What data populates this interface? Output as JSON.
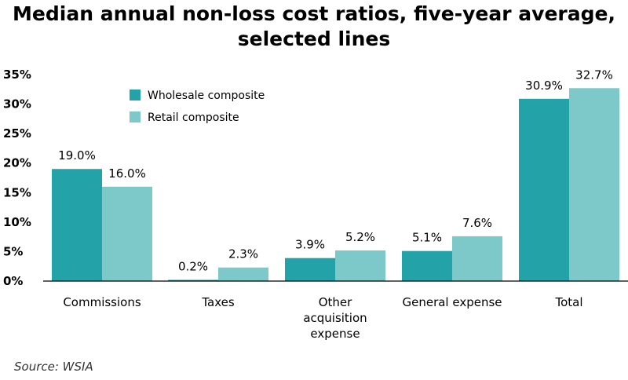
{
  "title_lines": [
    "Median annual non-loss cost ratios, five-year average,",
    "selected lines"
  ],
  "source": "Source: WSIA",
  "colors": {
    "wholesale": "#23a2a8",
    "retail": "#7dc9c9",
    "axis": "#000000"
  },
  "chart_data": {
    "type": "bar",
    "title": "Median annual non-loss cost ratios, five-year average, selected lines",
    "categories": [
      "Commissions",
      "Taxes",
      "Other acquisition expense",
      "General expense",
      "Total"
    ],
    "category_lines": [
      [
        "Commissions"
      ],
      [
        "Taxes"
      ],
      [
        "Other",
        "acquisition",
        "expense"
      ],
      [
        "General expense"
      ],
      [
        "Total"
      ]
    ],
    "series": [
      {
        "name": "Wholesale composite",
        "values": [
          19.0,
          0.2,
          3.9,
          5.1,
          30.9
        ],
        "labels": [
          "19.0%",
          "0.2%",
          "3.9%",
          "5.1%",
          "30.9%"
        ]
      },
      {
        "name": "Retail composite",
        "values": [
          16.0,
          2.3,
          5.2,
          7.6,
          32.7
        ],
        "labels": [
          "16.0%",
          "2.3%",
          "5.2%",
          "7.6%",
          "32.7%"
        ]
      }
    ],
    "ylim": [
      0,
      35
    ],
    "yticks": [
      0,
      5,
      10,
      15,
      20,
      25,
      30,
      35
    ],
    "ytick_labels": [
      "0%",
      "5%",
      "10%",
      "15%",
      "20%",
      "25%",
      "30%",
      "35%"
    ],
    "xlabel": "",
    "ylabel": "",
    "legend_position": "top-left",
    "grid": false
  }
}
